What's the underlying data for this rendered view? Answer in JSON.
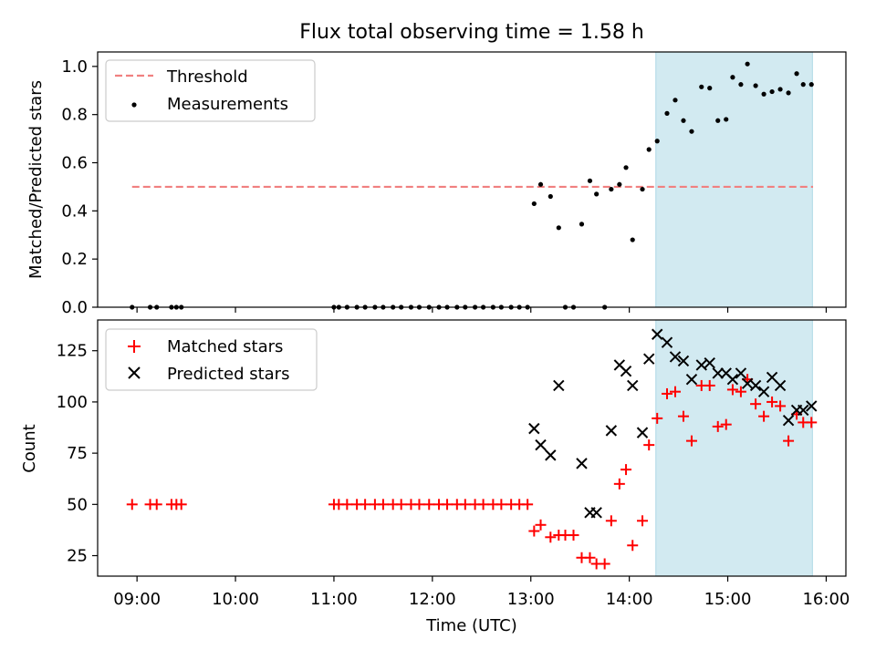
{
  "figure": {
    "title": "Flux total observing time = 1.58 h",
    "xlabel": "Time (UTC)",
    "xticks": [
      "09:00",
      "10:00",
      "11:00",
      "12:00",
      "13:00",
      "14:00",
      "15:00",
      "16:00"
    ],
    "x_range_hours": [
      8.6,
      16.2
    ],
    "highlight_span_hours": [
      14.27,
      15.86
    ],
    "highlight_color": "#add8e6"
  },
  "chart_data": [
    {
      "type": "scatter",
      "ylabel": "Matched/Predicted stars",
      "ylim": [
        0,
        1.06
      ],
      "yticks": [
        "0.0",
        "0.2",
        "0.4",
        "0.6",
        "0.8",
        "1.0"
      ],
      "legend": {
        "placement": "top-left",
        "entries": [
          "Threshold",
          "Measurements"
        ]
      },
      "threshold": {
        "name": "Threshold",
        "value": 0.5,
        "x_start": "08:57",
        "x_end": "15:52",
        "color": "#f08080",
        "style": "dashed"
      },
      "series": [
        {
          "name": "Measurements",
          "color": "#000000",
          "x": [
            "08:57",
            "09:08",
            "09:12",
            "09:21",
            "09:24",
            "09:27",
            "11:00",
            "11:03",
            "11:08",
            "11:14",
            "11:19",
            "11:25",
            "11:30",
            "11:36",
            "11:41",
            "11:47",
            "11:52",
            "11:58",
            "12:04",
            "12:09",
            "12:15",
            "12:20",
            "12:26",
            "12:31",
            "12:37",
            "12:42",
            "12:48",
            "12:53",
            "12:58",
            "13:02",
            "13:06",
            "13:12",
            "13:17",
            "13:21",
            "13:26",
            "13:31",
            "13:36",
            "13:40",
            "13:45",
            "13:49",
            "13:54",
            "13:58",
            "14:02",
            "14:08",
            "14:12",
            "14:17",
            "14:23",
            "14:28",
            "14:33",
            "14:38",
            "14:44",
            "14:49",
            "14:54",
            "14:59",
            "15:03",
            "15:08",
            "15:12",
            "15:17",
            "15:22",
            "15:27",
            "15:32",
            "15:37",
            "15:42",
            "15:46",
            "15:51"
          ],
          "y": [
            0,
            0,
            0,
            0,
            0,
            0,
            0,
            0,
            0,
            0,
            0,
            0,
            0,
            0,
            0,
            0,
            0,
            0,
            0,
            0,
            0,
            0,
            0,
            0,
            0,
            0,
            0,
            0,
            0,
            0.43,
            0.51,
            0.46,
            0.33,
            0,
            0,
            0.345,
            0.525,
            0.47,
            0,
            0.49,
            0.51,
            0.58,
            0.28,
            0.49,
            0.655,
            0.69,
            0.805,
            0.86,
            0.775,
            0.73,
            0.915,
            0.91,
            0.775,
            0.78,
            0.955,
            0.925,
            1.01,
            0.92,
            0.885,
            0.895,
            0.905,
            0.89,
            0.97,
            0.925,
            0.925
          ]
        }
      ]
    },
    {
      "type": "scatter",
      "ylabel": "Count",
      "ylim": [
        15,
        140
      ],
      "yticks": [
        "25",
        "50",
        "75",
        "100",
        "125"
      ],
      "legend": {
        "placement": "top-left",
        "entries": [
          "Matched stars",
          "Predicted stars"
        ]
      },
      "series": [
        {
          "name": "Matched stars",
          "color": "#ff0000",
          "marker": "+",
          "x": [
            "08:57",
            "09:08",
            "09:12",
            "09:21",
            "09:24",
            "09:27",
            "11:00",
            "11:03",
            "11:08",
            "11:14",
            "11:19",
            "11:25",
            "11:30",
            "11:36",
            "11:41",
            "11:47",
            "11:52",
            "11:58",
            "12:04",
            "12:09",
            "12:15",
            "12:20",
            "12:26",
            "12:31",
            "12:37",
            "12:42",
            "12:48",
            "12:53",
            "12:58",
            "13:02",
            "13:06",
            "13:12",
            "13:17",
            "13:21",
            "13:26",
            "13:31",
            "13:36",
            "13:40",
            "13:45",
            "13:49",
            "13:54",
            "13:58",
            "14:02",
            "14:08",
            "14:12",
            "14:17",
            "14:23",
            "14:28",
            "14:33",
            "14:38",
            "14:44",
            "14:49",
            "14:54",
            "14:59",
            "15:03",
            "15:08",
            "15:12",
            "15:17",
            "15:22",
            "15:27",
            "15:32",
            "15:37",
            "15:42",
            "15:46",
            "15:51"
          ],
          "y": [
            50,
            50,
            50,
            50,
            50,
            50,
            50,
            50,
            50,
            50,
            50,
            50,
            50,
            50,
            50,
            50,
            50,
            50,
            50,
            50,
            50,
            50,
            50,
            50,
            50,
            50,
            50,
            50,
            50,
            37,
            40,
            34,
            35,
            35,
            35,
            24,
            24,
            21,
            21,
            42,
            60,
            67,
            30,
            42,
            79,
            92,
            104,
            105,
            93,
            81,
            108,
            108,
            88,
            89,
            106,
            105,
            111,
            99,
            93,
            100,
            98,
            81,
            94,
            90,
            90
          ]
        },
        {
          "name": "Predicted stars",
          "color": "#000000",
          "marker": "x",
          "x": [
            "13:02",
            "13:06",
            "13:12",
            "13:17",
            "13:31",
            "13:36",
            "13:40",
            "13:49",
            "13:54",
            "13:58",
            "14:02",
            "14:08",
            "14:12",
            "14:17",
            "14:23",
            "14:28",
            "14:33",
            "14:38",
            "14:44",
            "14:49",
            "14:54",
            "14:59",
            "15:03",
            "15:08",
            "15:12",
            "15:17",
            "15:22",
            "15:27",
            "15:32",
            "15:37",
            "15:42",
            "15:46",
            "15:51"
          ],
          "y": [
            87,
            79,
            74,
            108,
            70,
            46,
            46,
            86,
            118,
            115,
            108,
            85,
            121,
            133,
            129,
            122,
            120,
            111,
            118,
            119,
            114,
            114,
            111,
            114,
            109,
            108,
            105,
            112,
            108,
            91,
            96,
            96,
            98
          ]
        }
      ]
    }
  ]
}
